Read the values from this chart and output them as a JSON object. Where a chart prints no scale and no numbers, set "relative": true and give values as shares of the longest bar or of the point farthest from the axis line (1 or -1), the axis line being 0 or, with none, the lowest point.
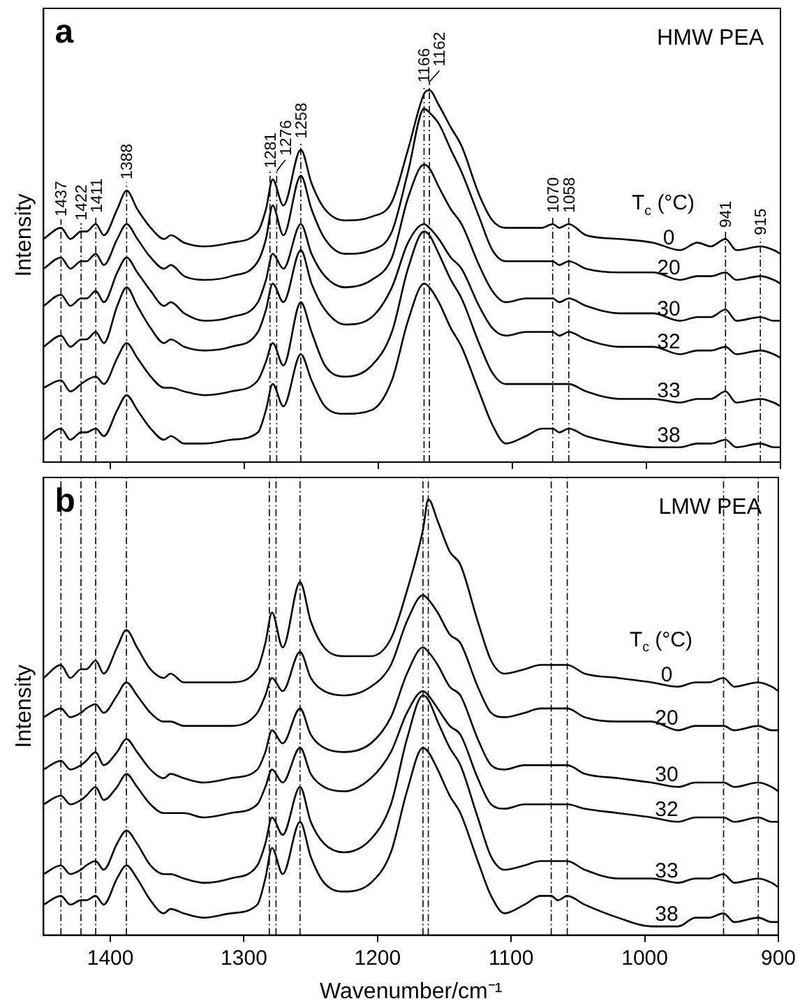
{
  "chart_data": [
    {
      "type": "line",
      "annotations": [
        "a",
        "HMW PEA"
      ],
      "ylabel": "Intensity",
      "legend_title": "T$_{c}$ (°C)",
      "relative": true,
      "tick_labels": false,
      "marker": "none",
      "line_style": "solid",
      "xlim": [
        1450,
        900
      ],
      "xticks": [
        1400,
        1300,
        1200,
        1100,
        1000,
        900
      ],
      "x": [
        1450,
        1437,
        1430,
        1422,
        1418,
        1411,
        1405,
        1395,
        1388,
        1380,
        1370,
        1360,
        1355,
        1345,
        1330,
        1310,
        1290,
        1284,
        1279,
        1271,
        1258,
        1250,
        1240,
        1225,
        1205,
        1190,
        1178,
        1166,
        1162,
        1155,
        1146,
        1138,
        1125,
        1115,
        1105,
        1090,
        1078,
        1070,
        1065,
        1058,
        1045,
        1020,
        995,
        975,
        962,
        952,
        941,
        933,
        915,
        905,
        900
      ],
      "ref_lines": [
        {
          "axis": "x",
          "value": 1437,
          "label": "1437"
        },
        {
          "axis": "x",
          "value": 1422,
          "label": "1422"
        },
        {
          "axis": "x",
          "value": 1411,
          "label": "1411"
        },
        {
          "axis": "x",
          "value": 1388,
          "label": "1388"
        },
        {
          "axis": "x",
          "value": 1281,
          "label": "1281"
        },
        {
          "axis": "x",
          "value": 1276,
          "label": "1276"
        },
        {
          "axis": "x",
          "value": 1258,
          "label": "1258"
        },
        {
          "axis": "x",
          "value": 1166,
          "label": "1166"
        },
        {
          "axis": "x",
          "value": 1162,
          "label": "1162"
        },
        {
          "axis": "x",
          "value": 1070,
          "label": "1070"
        },
        {
          "axis": "x",
          "value": 1058,
          "label": "1058"
        },
        {
          "axis": "x",
          "value": 941,
          "label": "941"
        },
        {
          "axis": "x",
          "value": 915,
          "label": "915"
        }
      ],
      "series": [
        {
          "name": "0",
          "color": "#000000",
          "values": [
            0.6,
            0.63,
            0.6,
            0.62,
            0.62,
            0.64,
            0.61,
            0.68,
            0.73,
            0.68,
            0.63,
            0.6,
            0.61,
            0.59,
            0.58,
            0.59,
            0.62,
            0.68,
            0.76,
            0.69,
            0.84,
            0.75,
            0.68,
            0.65,
            0.66,
            0.7,
            0.84,
            0.99,
            1.0,
            0.96,
            0.9,
            0.85,
            0.72,
            0.65,
            0.63,
            0.63,
            0.63,
            0.64,
            0.63,
            0.64,
            0.61,
            0.6,
            0.59,
            0.57,
            0.59,
            0.58,
            0.6,
            0.57,
            0.58,
            0.57,
            0.56
          ]
        },
        {
          "name": "20",
          "color": "#000000",
          "values": [
            0.52,
            0.55,
            0.52,
            0.54,
            0.54,
            0.56,
            0.53,
            0.6,
            0.64,
            0.6,
            0.55,
            0.52,
            0.53,
            0.5,
            0.49,
            0.5,
            0.54,
            0.6,
            0.69,
            0.61,
            0.77,
            0.68,
            0.6,
            0.56,
            0.57,
            0.62,
            0.78,
            0.95,
            0.94,
            0.91,
            0.84,
            0.78,
            0.66,
            0.57,
            0.54,
            0.54,
            0.54,
            0.54,
            0.53,
            0.54,
            0.52,
            0.51,
            0.51,
            0.49,
            0.5,
            0.5,
            0.51,
            0.49,
            0.5,
            0.49,
            0.48
          ]
        },
        {
          "name": "30",
          "color": "#000000",
          "values": [
            0.42,
            0.45,
            0.42,
            0.44,
            0.44,
            0.46,
            0.43,
            0.51,
            0.55,
            0.51,
            0.46,
            0.42,
            0.43,
            0.4,
            0.38,
            0.39,
            0.43,
            0.49,
            0.56,
            0.52,
            0.64,
            0.56,
            0.5,
            0.47,
            0.49,
            0.55,
            0.71,
            0.8,
            0.79,
            0.74,
            0.68,
            0.64,
            0.53,
            0.46,
            0.43,
            0.44,
            0.44,
            0.44,
            0.43,
            0.44,
            0.42,
            0.4,
            0.4,
            0.38,
            0.39,
            0.39,
            0.41,
            0.38,
            0.39,
            0.38,
            0.38
          ]
        },
        {
          "name": "32",
          "color": "#000000",
          "values": [
            0.31,
            0.34,
            0.31,
            0.33,
            0.33,
            0.35,
            0.32,
            0.42,
            0.47,
            0.42,
            0.36,
            0.32,
            0.33,
            0.31,
            0.3,
            0.31,
            0.35,
            0.41,
            0.48,
            0.43,
            0.57,
            0.48,
            0.41,
            0.37,
            0.39,
            0.47,
            0.59,
            0.64,
            0.63,
            0.6,
            0.55,
            0.52,
            0.42,
            0.36,
            0.34,
            0.35,
            0.35,
            0.35,
            0.34,
            0.35,
            0.33,
            0.31,
            0.31,
            0.29,
            0.3,
            0.3,
            0.31,
            0.29,
            0.3,
            0.29,
            0.28
          ]
        },
        {
          "name": "33",
          "color": "#000000",
          "values": [
            0.2,
            0.22,
            0.19,
            0.21,
            0.22,
            0.23,
            0.21,
            0.28,
            0.32,
            0.28,
            0.23,
            0.2,
            0.2,
            0.19,
            0.18,
            0.19,
            0.22,
            0.27,
            0.32,
            0.26,
            0.43,
            0.35,
            0.26,
            0.23,
            0.26,
            0.35,
            0.52,
            0.62,
            0.61,
            0.56,
            0.49,
            0.44,
            0.32,
            0.24,
            0.21,
            0.21,
            0.21,
            0.21,
            0.21,
            0.21,
            0.19,
            0.17,
            0.17,
            0.16,
            0.17,
            0.17,
            0.19,
            0.16,
            0.17,
            0.16,
            0.15
          ]
        },
        {
          "name": "38",
          "color": "#000000",
          "values": [
            0.06,
            0.09,
            0.06,
            0.08,
            0.08,
            0.09,
            0.07,
            0.14,
            0.18,
            0.14,
            0.09,
            0.06,
            0.07,
            0.05,
            0.05,
            0.06,
            0.08,
            0.14,
            0.21,
            0.15,
            0.29,
            0.22,
            0.15,
            0.13,
            0.14,
            0.22,
            0.38,
            0.48,
            0.47,
            0.43,
            0.36,
            0.31,
            0.19,
            0.1,
            0.05,
            0.07,
            0.09,
            0.09,
            0.08,
            0.09,
            0.07,
            0.05,
            0.04,
            0.04,
            0.05,
            0.05,
            0.06,
            0.04,
            0.05,
            0.04,
            0.04
          ]
        }
      ]
    },
    {
      "type": "line",
      "annotations": [
        "b",
        "LMW PEA"
      ],
      "ylabel": "Intensity",
      "xlabel": "Wavenumber/cm⁻¹",
      "legend_title": "T$_{c}$ (°C)",
      "relative": true,
      "tick_labels": "x",
      "marker": "none",
      "line_style": "solid",
      "xlim": [
        1450,
        900
      ],
      "xticks": [
        1400,
        1300,
        1200,
        1100,
        1000,
        900
      ],
      "x": [
        1450,
        1437,
        1430,
        1422,
        1418,
        1411,
        1405,
        1395,
        1388,
        1380,
        1370,
        1360,
        1355,
        1345,
        1330,
        1310,
        1290,
        1284,
        1279,
        1271,
        1258,
        1250,
        1240,
        1225,
        1205,
        1190,
        1178,
        1166,
        1162,
        1155,
        1146,
        1138,
        1125,
        1115,
        1105,
        1090,
        1078,
        1070,
        1065,
        1058,
        1045,
        1020,
        995,
        975,
        962,
        952,
        941,
        933,
        915,
        905,
        900
      ],
      "ref_lines": [
        {
          "axis": "x",
          "value": 1437
        },
        {
          "axis": "x",
          "value": 1422
        },
        {
          "axis": "x",
          "value": 1411
        },
        {
          "axis": "x",
          "value": 1388
        },
        {
          "axis": "x",
          "value": 1281
        },
        {
          "axis": "x",
          "value": 1276
        },
        {
          "axis": "x",
          "value": 1258
        },
        {
          "axis": "x",
          "value": 1166
        },
        {
          "axis": "x",
          "value": 1162
        },
        {
          "axis": "x",
          "value": 1070
        },
        {
          "axis": "x",
          "value": 1058
        },
        {
          "axis": "x",
          "value": 941
        },
        {
          "axis": "x",
          "value": 915
        }
      ],
      "series": [
        {
          "name": "0",
          "color": "#000000",
          "values": [
            0.59,
            0.62,
            0.59,
            0.61,
            0.61,
            0.63,
            0.6,
            0.66,
            0.7,
            0.66,
            0.61,
            0.59,
            0.6,
            0.58,
            0.58,
            0.58,
            0.61,
            0.67,
            0.74,
            0.66,
            0.81,
            0.72,
            0.66,
            0.64,
            0.64,
            0.68,
            0.79,
            0.93,
            1.0,
            0.95,
            0.88,
            0.85,
            0.72,
            0.63,
            0.6,
            0.61,
            0.62,
            0.62,
            0.62,
            0.62,
            0.6,
            0.59,
            0.58,
            0.57,
            0.58,
            0.58,
            0.59,
            0.57,
            0.58,
            0.57,
            0.56
          ]
        },
        {
          "name": "20",
          "color": "#000000",
          "values": [
            0.5,
            0.52,
            0.5,
            0.51,
            0.52,
            0.53,
            0.51,
            0.55,
            0.58,
            0.55,
            0.51,
            0.49,
            0.49,
            0.48,
            0.48,
            0.48,
            0.51,
            0.55,
            0.59,
            0.56,
            0.65,
            0.59,
            0.56,
            0.55,
            0.57,
            0.62,
            0.72,
            0.78,
            0.77,
            0.74,
            0.69,
            0.67,
            0.57,
            0.51,
            0.5,
            0.51,
            0.52,
            0.52,
            0.52,
            0.52,
            0.5,
            0.49,
            0.49,
            0.47,
            0.48,
            0.48,
            0.48,
            0.47,
            0.48,
            0.47,
            0.47
          ]
        },
        {
          "name": "30",
          "color": "#000000",
          "values": [
            0.38,
            0.4,
            0.38,
            0.39,
            0.4,
            0.42,
            0.39,
            0.42,
            0.45,
            0.42,
            0.38,
            0.36,
            0.37,
            0.36,
            0.35,
            0.36,
            0.38,
            0.42,
            0.47,
            0.44,
            0.52,
            0.46,
            0.43,
            0.42,
            0.44,
            0.5,
            0.6,
            0.66,
            0.65,
            0.62,
            0.57,
            0.55,
            0.45,
            0.39,
            0.38,
            0.39,
            0.39,
            0.39,
            0.39,
            0.39,
            0.37,
            0.36,
            0.35,
            0.34,
            0.35,
            0.35,
            0.35,
            0.34,
            0.35,
            0.34,
            0.33
          ]
        },
        {
          "name": "32",
          "color": "#000000",
          "values": [
            0.3,
            0.32,
            0.3,
            0.31,
            0.32,
            0.34,
            0.31,
            0.34,
            0.37,
            0.34,
            0.3,
            0.28,
            0.28,
            0.28,
            0.27,
            0.28,
            0.3,
            0.34,
            0.38,
            0.35,
            0.43,
            0.37,
            0.34,
            0.33,
            0.36,
            0.42,
            0.51,
            0.56,
            0.55,
            0.52,
            0.48,
            0.46,
            0.36,
            0.3,
            0.29,
            0.3,
            0.3,
            0.3,
            0.3,
            0.3,
            0.29,
            0.28,
            0.27,
            0.26,
            0.27,
            0.27,
            0.27,
            0.26,
            0.27,
            0.26,
            0.26
          ]
        },
        {
          "name": "33",
          "color": "#000000",
          "values": [
            0.14,
            0.16,
            0.14,
            0.15,
            0.16,
            0.17,
            0.15,
            0.21,
            0.24,
            0.21,
            0.16,
            0.14,
            0.14,
            0.13,
            0.12,
            0.13,
            0.16,
            0.21,
            0.27,
            0.23,
            0.34,
            0.26,
            0.21,
            0.19,
            0.22,
            0.3,
            0.45,
            0.55,
            0.54,
            0.49,
            0.43,
            0.39,
            0.27,
            0.18,
            0.15,
            0.16,
            0.17,
            0.17,
            0.17,
            0.17,
            0.15,
            0.13,
            0.13,
            0.12,
            0.13,
            0.13,
            0.14,
            0.12,
            0.13,
            0.12,
            0.11
          ]
        },
        {
          "name": "38",
          "color": "#000000",
          "values": [
            0.07,
            0.09,
            0.07,
            0.08,
            0.08,
            0.09,
            0.07,
            0.13,
            0.16,
            0.13,
            0.08,
            0.05,
            0.06,
            0.05,
            0.04,
            0.05,
            0.07,
            0.13,
            0.2,
            0.14,
            0.26,
            0.18,
            0.12,
            0.1,
            0.12,
            0.19,
            0.33,
            0.43,
            0.42,
            0.38,
            0.32,
            0.28,
            0.17,
            0.09,
            0.05,
            0.07,
            0.09,
            0.09,
            0.08,
            0.09,
            0.07,
            0.04,
            0.02,
            0.02,
            0.04,
            0.04,
            0.05,
            0.03,
            0.04,
            0.03,
            0.03
          ]
        }
      ]
    }
  ]
}
